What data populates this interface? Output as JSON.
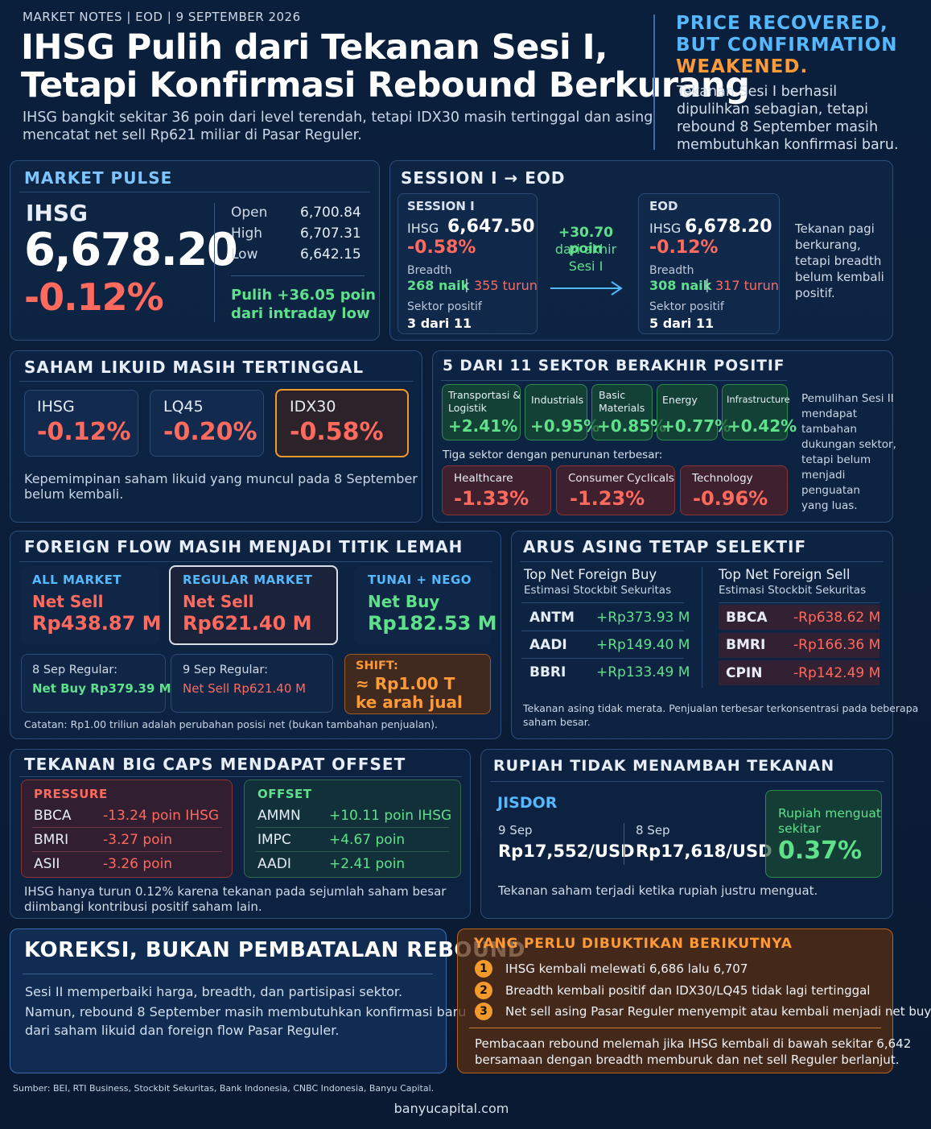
{
  "header": {
    "kicker": "MARKET NOTES | EOD | 9 SEPTEMBER 2026",
    "title_line1": "IHSG Pulih dari Tekanan Sesi I,",
    "title_line2": "Tetapi Konfirmasi Rebound Berkurang",
    "subtitle_line1": "IHSG bangkit sekitar 36 poin dari level terendah, tetapi IDX30 masih tertinggal dan asing",
    "subtitle_line2": "mencatat net sell Rp621 miliar di Pasar Reguler.",
    "right_title_line1": "PRICE RECOVERED,",
    "right_title_line2": "BUT CONFIRMATION",
    "right_title_line3": "WEAKENED.",
    "right_text_line1": "Tekanan Sesi I berhasil",
    "right_text_line2": "dipulihkan sebagian, tetapi",
    "right_text_line3": "rebound 8 September masih",
    "right_text_line4": "membutuhkan konfirmasi baru."
  },
  "market_pulse": {
    "title": "MARKET PULSE",
    "index": "IHSG",
    "value": "6,678.20",
    "change": "-0.12%",
    "stats": [
      {
        "label": "Open",
        "value": "6,700.84"
      },
      {
        "label": "High",
        "value": "6,707.31"
      },
      {
        "label": "Low",
        "value": "6,642.15"
      }
    ],
    "recovery_line1": "Pulih +36.05 poin",
    "recovery_line2": "dari intraday low"
  },
  "session": {
    "title": "SESSION I → EOD",
    "s1": {
      "label": "SESSION I",
      "index": "IHSG",
      "value": "6,647.50",
      "change": "-0.58%",
      "breadth_label": "Breadth",
      "up": "268 naik",
      "sep": "|",
      "down": "355 turun",
      "sector_label": "Sektor positif",
      "sector_value": "3 dari 11"
    },
    "mid_line1": "+30.70 poin",
    "mid_line2": "dari akhir",
    "mid_line3": "Sesi I",
    "eod": {
      "label": "EOD",
      "index": "IHSG",
      "value": "6,678.20",
      "change": "-0.12%",
      "breadth_label": "Breadth",
      "up": "308 naik",
      "sep": "|",
      "down": "317 turun",
      "sector_label": "Sektor positif",
      "sector_value": "5 dari 11"
    },
    "note": [
      "Tekanan pagi",
      "berkurang,",
      "tetapi breadth",
      "belum kembali",
      "positif."
    ]
  },
  "liquid": {
    "title": "SAHAM LIKUID MASIH TERTINGGAL",
    "cards": [
      {
        "name": "IHSG",
        "change": "-0.12%"
      },
      {
        "name": "LQ45",
        "change": "-0.20%"
      },
      {
        "name": "IDX30",
        "change": "-0.58%"
      }
    ],
    "note_line1": "Kepemimpinan saham likuid yang muncul pada 8 September",
    "note_line2": "belum kembali."
  },
  "sectors": {
    "title": "5 DARI 11 SEKTOR BERAKHIR POSITIF",
    "positive": [
      {
        "name_line1": "Transportasi &",
        "name_line2": "Logistik",
        "change": "+2.41%"
      },
      {
        "name_line1": "Industrials",
        "name_line2": "",
        "change": "+0.95%"
      },
      {
        "name_line1": "Basic",
        "name_line2": "Materials",
        "change": "+0.85%"
      },
      {
        "name_line1": "Energy",
        "name_line2": "",
        "change": "+0.77%"
      },
      {
        "name_line1": "Infrastructure",
        "name_line2": "",
        "change": "+0.42%"
      }
    ],
    "neg_label": "Tiga sektor dengan penurunan terbesar:",
    "negative": [
      {
        "name": "Healthcare",
        "change": "-1.33%"
      },
      {
        "name": "Consumer Cyclicals",
        "change": "-1.23%"
      },
      {
        "name": "Technology",
        "change": "-0.96%"
      }
    ],
    "note": [
      "Pemulihan Sesi II",
      "mendapat",
      "tambahan",
      "dukungan sektor,",
      "tetapi belum",
      "menjadi",
      "penguatan",
      "yang luas."
    ]
  },
  "foreign": {
    "title": "FOREIGN FLOW MASIH MENJADI TITIK LEMAH",
    "cards": [
      {
        "label": "ALL MARKET",
        "action": "Net Sell",
        "value": "Rp438.87 M"
      },
      {
        "label": "REGULAR MARKET",
        "action": "Net Sell",
        "value": "Rp621.40 M"
      },
      {
        "label": "TUNAI + NEGO",
        "action": "Net Buy",
        "value": "Rp182.53 M"
      }
    ],
    "sep8_label": "8 Sep Regular:",
    "sep8_value": "Net Buy Rp379.39 M",
    "sep9_label": "9 Sep Regular:",
    "sep9_value": "Net Sell Rp621.40 M",
    "shift_label": "SHIFT:",
    "shift_line1": "≈ Rp1.00 T",
    "shift_line2": "ke arah jual",
    "note": "Catatan: Rp1.00 triliun adalah perubahan posisi net (bukan tambahan penjualan)."
  },
  "arus": {
    "title": "ARUS ASING TETAP SELEKTIF",
    "buy_title": "Top Net Foreign Buy",
    "buy_sub": "Estimasi Stockbit Sekuritas",
    "buy": [
      {
        "ticker": "ANTM",
        "value": "+Rp373.93 M"
      },
      {
        "ticker": "AADI",
        "value": "+Rp149.40 M"
      },
      {
        "ticker": "BBRI",
        "value": "+Rp133.49 M"
      }
    ],
    "sell_title": "Top Net Foreign Sell",
    "sell_sub": "Estimasi Stockbit Sekuritas",
    "sell": [
      {
        "ticker": "BBCA",
        "value": "-Rp638.62 M"
      },
      {
        "ticker": "BMRI",
        "value": "-Rp166.36 M"
      },
      {
        "ticker": "CPIN",
        "value": "-Rp142.49 M"
      }
    ],
    "note_line1": "Tekanan asing tidak merata. Penjualan terbesar terkonsentrasi pada beberapa",
    "note_line2": "saham besar."
  },
  "bigcaps": {
    "title": "TEKANAN BIG CAPS MENDAPAT OFFSET",
    "pressure_label": "PRESSURE",
    "pressure": [
      {
        "ticker": "BBCA",
        "value": "-13.24 poin IHSG"
      },
      {
        "ticker": "BMRI",
        "value": "-3.27 poin"
      },
      {
        "ticker": "ASII",
        "value": "-3.26 poin"
      }
    ],
    "offset_label": "OFFSET",
    "offset": [
      {
        "ticker": "AMMN",
        "value": "+10.11 poin IHSG"
      },
      {
        "ticker": "IMPC",
        "value": "+4.67 poin"
      },
      {
        "ticker": "AADI",
        "value": "+2.41 poin"
      }
    ],
    "note_line1": "IHSG hanya turun 0.12% karena tekanan pada sejumlah saham besar",
    "note_line2": "diimbangi kontribusi positif saham lain."
  },
  "rupiah": {
    "title": "RUPIAH TIDAK MENAMBAH TEKANAN",
    "label": "JISDOR",
    "d1_label": "9 Sep",
    "d1_value": "Rp17,552/USD",
    "d2_label": "8 Sep",
    "d2_value": "Rp17,618/USD",
    "box_line1": "Rupiah menguat",
    "box_line2": "sekitar",
    "box_value": "0.37%",
    "note": "Tekanan saham terjadi ketika rupiah justru menguat."
  },
  "koreksi": {
    "title": "KOREKSI, BUKAN PEMBATALAN REBOUND",
    "line1": "Sesi II memperbaiki harga, breadth, dan partisipasi sektor.",
    "line2": "Namun, rebound 8 September masih membutuhkan konfirmasi baru",
    "line3": "dari saham likuid dan foreign flow Pasar Reguler."
  },
  "next": {
    "title": "YANG PERLU DIBUKTIKAN BERIKUTNYA",
    "items": [
      {
        "n": "1",
        "text": "IHSG kembali melewati 6,686 lalu 6,707"
      },
      {
        "n": "2",
        "text": "Breadth kembali positif dan IDX30/LQ45 tidak lagi tertinggal"
      },
      {
        "n": "3",
        "text": "Net sell asing Pasar Reguler menyempit atau kembali menjadi net buy"
      }
    ],
    "note_line1": "Pembacaan rebound melemah jika IHSG kembali di bawah sekitar 6,642",
    "note_line2": "bersamaan dengan breadth memburuk dan net sell Reguler berlanjut."
  },
  "footer": {
    "source": "Sumber: BEI, RTI Business, Stockbit Sekuritas, Bank Indonesia, CNBC Indonesia, Banyu Capital.",
    "site": "banyucapital.com"
  },
  "colors": {
    "green": "#5fe08a",
    "red": "#ff6a5e",
    "cyan": "#56b8ff",
    "amber": "#ff9a38",
    "background": "#0a1f3c"
  }
}
